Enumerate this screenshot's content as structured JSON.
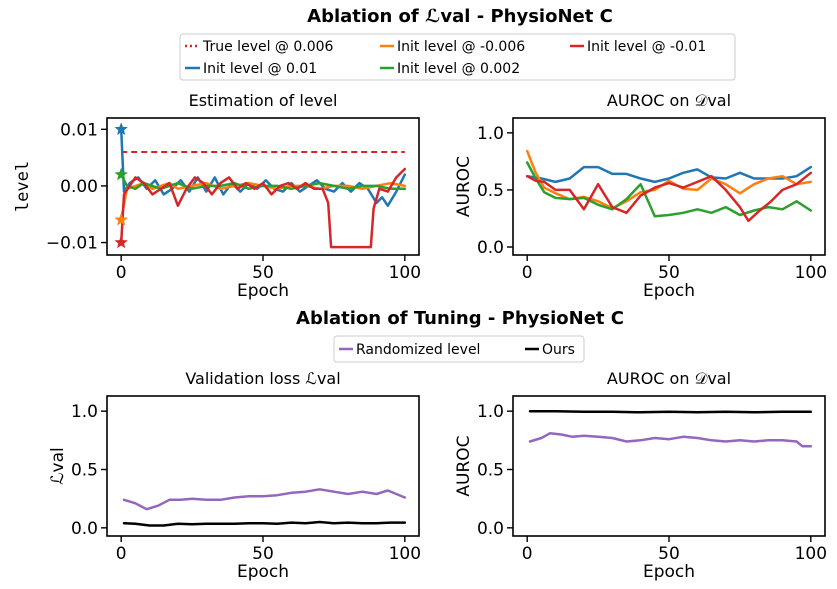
{
  "top_title": "Ablation of ℒval - PhysioNet C",
  "bottom_title": "Ablation of Tuning - PhysioNet C",
  "colors": {
    "blue": "#1f77b4",
    "orange": "#ff7f0e",
    "green": "#2ca02c",
    "red": "#d62728",
    "purple": "#9467bd",
    "black": "#000000"
  },
  "legend_top": [
    {
      "label": "True level @ 0.006",
      "color": "#d62728",
      "style": "dotted"
    },
    {
      "label": "Init level @ -0.006",
      "color": "#ff7f0e",
      "style": "solid"
    },
    {
      "label": "Init level @ -0.01",
      "color": "#d62728",
      "style": "solid"
    },
    {
      "label": "Init level @ 0.01",
      "color": "#1f77b4",
      "style": "solid"
    },
    {
      "label": "Init level @ 0.002",
      "color": "#2ca02c",
      "style": "solid"
    }
  ],
  "legend_bottom": [
    {
      "label": "Randomized level",
      "color": "#9467bd",
      "style": "solid"
    },
    {
      "label": "Ours",
      "color": "#000000",
      "style": "solid"
    }
  ],
  "chart_data": [
    {
      "type": "line",
      "title": "Estimation of level",
      "xlabel": "Epoch",
      "ylabel": "level",
      "xlim": [
        -5,
        105
      ],
      "ylim": [
        -0.0122,
        0.012
      ],
      "xticks": [
        0,
        50,
        100
      ],
      "xtick_labels": [
        "0",
        "50",
        "100"
      ],
      "yticks": [
        -0.01,
        0.0,
        0.01
      ],
      "ytick_labels": [
        "−0.01",
        "0.00",
        "0.01"
      ],
      "hlines": [
        {
          "name": "True level @ 0.006",
          "y": 0.006,
          "x_range": [
            0,
            100
          ],
          "color": "#d62728",
          "style": "dashed"
        }
      ],
      "series": [
        {
          "name": "Init level @ 0.01",
          "color": "#1f77b4",
          "x": [
            0,
            1,
            3,
            6,
            9,
            12,
            15,
            18,
            21,
            24,
            27,
            30,
            33,
            36,
            39,
            42,
            45,
            48,
            51,
            54,
            57,
            60,
            63,
            66,
            69,
            72,
            75,
            78,
            81,
            84,
            87,
            90,
            92,
            94,
            97,
            100
          ],
          "y": [
            0.01,
            -0.001,
            0.0005,
            0.0015,
            -0.0005,
            0.001,
            -0.0015,
            -0.0005,
            0.001,
            -0.001,
            0.0015,
            -0.001,
            0.0015,
            -0.0015,
            0.0005,
            -0.001,
            0.0005,
            -0.0005,
            0.001,
            -0.0005,
            -0.001,
            0.0005,
            -0.001,
            0.0,
            0.001,
            -0.0005,
            -0.001,
            0.0005,
            -0.001,
            0.0005,
            -0.0005,
            -0.003,
            -0.002,
            -0.0035,
            -0.001,
            0.002
          ],
          "marker_start": true
        },
        {
          "name": "Init level @ -0.006",
          "color": "#ff7f0e",
          "x": [
            0,
            2,
            5,
            8,
            11,
            14,
            17,
            20,
            25,
            30,
            35,
            40,
            45,
            50,
            55,
            60,
            65,
            70,
            75,
            80,
            85,
            90,
            95,
            100
          ],
          "y": [
            -0.006,
            -0.0005,
            0.0,
            0.0005,
            -0.0005,
            0.0,
            0.0005,
            -0.0005,
            0.0,
            0.0005,
            -0.0005,
            0.0,
            0.0005,
            0.0,
            -0.0005,
            0.0,
            0.0,
            -0.0005,
            0.0,
            0.0,
            -0.0005,
            0.0,
            0.0005,
            0.0
          ],
          "marker_start": true
        },
        {
          "name": "Init level @ 0.002",
          "color": "#2ca02c",
          "x": [
            0,
            2,
            5,
            8,
            11,
            14,
            17,
            20,
            25,
            30,
            35,
            40,
            45,
            50,
            55,
            60,
            65,
            70,
            75,
            80,
            85,
            90,
            95,
            100
          ],
          "y": [
            0.002,
            0.0,
            -0.0005,
            0.0005,
            0.0,
            -0.0005,
            0.0,
            0.0005,
            -0.0005,
            0.0,
            0.0,
            0.0005,
            -0.0005,
            0.0,
            0.0,
            -0.0005,
            0.0,
            0.0005,
            0.0,
            -0.0005,
            0.0,
            0.0,
            -0.0005,
            -0.0005
          ],
          "marker_start": true
        },
        {
          "name": "Init level @ -0.01",
          "color": "#d62728",
          "x": [
            0,
            1,
            3,
            5,
            8,
            11,
            14,
            17,
            20,
            23,
            26,
            29,
            32,
            35,
            38,
            41,
            44,
            47,
            50,
            53,
            56,
            59,
            62,
            65,
            68,
            71,
            73,
            74,
            76,
            80,
            84,
            86,
            88,
            89,
            91,
            94,
            97,
            100
          ],
          "y": [
            -0.01,
            -0.0015,
            0.0,
            0.0015,
            0.0005,
            -0.0015,
            -0.0005,
            0.0005,
            -0.0035,
            -0.0005,
            0.0015,
            0.0005,
            -0.0015,
            0.0005,
            0.0015,
            -0.0005,
            0.0005,
            -0.0005,
            0.0005,
            -0.0015,
            0.0,
            0.0005,
            -0.0005,
            0.0005,
            -0.0005,
            -0.0005,
            -0.003,
            -0.0108,
            -0.0108,
            -0.0108,
            -0.0108,
            -0.0108,
            -0.0108,
            -0.004,
            -0.0005,
            -0.001,
            0.0015,
            0.003
          ],
          "marker_start": true
        }
      ]
    },
    {
      "type": "line",
      "title": "AUROC on 𝒟val",
      "xlabel": "Epoch",
      "ylabel": "AUROC",
      "xlim": [
        -5,
        105
      ],
      "ylim": [
        -0.07,
        1.13
      ],
      "xticks": [
        0,
        50,
        100
      ],
      "xtick_labels": [
        "0",
        "50",
        "100"
      ],
      "yticks": [
        0.0,
        0.5,
        1.0
      ],
      "ytick_labels": [
        "0.0",
        "0.5",
        "1.0"
      ],
      "series": [
        {
          "name": "Init level @ 0.01",
          "color": "#1f77b4",
          "x": [
            0,
            5,
            10,
            15,
            20,
            25,
            30,
            35,
            40,
            45,
            50,
            55,
            60,
            65,
            70,
            75,
            80,
            85,
            90,
            95,
            100
          ],
          "y": [
            0.62,
            0.6,
            0.57,
            0.6,
            0.7,
            0.7,
            0.64,
            0.64,
            0.6,
            0.57,
            0.6,
            0.65,
            0.68,
            0.61,
            0.6,
            0.65,
            0.6,
            0.6,
            0.6,
            0.62,
            0.7
          ]
        },
        {
          "name": "Init level @ -0.006",
          "color": "#ff7f0e",
          "x": [
            0,
            3,
            6,
            10,
            15,
            20,
            25,
            30,
            35,
            40,
            45,
            50,
            55,
            60,
            65,
            70,
            75,
            80,
            85,
            90,
            95,
            100
          ],
          "y": [
            0.84,
            0.65,
            0.52,
            0.47,
            0.42,
            0.44,
            0.4,
            0.34,
            0.4,
            0.48,
            0.5,
            0.58,
            0.51,
            0.5,
            0.6,
            0.55,
            0.47,
            0.55,
            0.6,
            0.62,
            0.55,
            0.57
          ]
        },
        {
          "name": "Init level @ 0.002",
          "color": "#2ca02c",
          "x": [
            0,
            3,
            6,
            10,
            15,
            20,
            25,
            30,
            35,
            40,
            45,
            50,
            55,
            60,
            65,
            70,
            75,
            80,
            85,
            90,
            95,
            100
          ],
          "y": [
            0.74,
            0.6,
            0.48,
            0.43,
            0.42,
            0.43,
            0.37,
            0.33,
            0.42,
            0.55,
            0.27,
            0.28,
            0.3,
            0.33,
            0.3,
            0.35,
            0.28,
            0.32,
            0.35,
            0.33,
            0.4,
            0.32
          ]
        },
        {
          "name": "Init level @ -0.01",
          "color": "#d62728",
          "x": [
            0,
            3,
            6,
            10,
            15,
            20,
            25,
            30,
            35,
            40,
            45,
            50,
            55,
            60,
            65,
            70,
            75,
            78,
            82,
            86,
            90,
            95,
            100
          ],
          "y": [
            0.62,
            0.58,
            0.57,
            0.5,
            0.5,
            0.33,
            0.55,
            0.35,
            0.3,
            0.45,
            0.52,
            0.56,
            0.52,
            0.57,
            0.62,
            0.5,
            0.35,
            0.23,
            0.32,
            0.4,
            0.5,
            0.55,
            0.65
          ]
        }
      ]
    },
    {
      "type": "line",
      "title": "Validation loss ℒval",
      "xlabel": "Epoch",
      "ylabel": "ℒval",
      "xlim": [
        -5,
        105
      ],
      "ylim": [
        -0.07,
        1.13
      ],
      "xticks": [
        0,
        50,
        100
      ],
      "xtick_labels": [
        "0",
        "50",
        "100"
      ],
      "yticks": [
        0.0,
        0.5,
        1.0
      ],
      "ytick_labels": [
        "0.0",
        "0.5",
        "1.0"
      ],
      "series": [
        {
          "name": "Randomized level",
          "color": "#9467bd",
          "x": [
            1,
            5,
            9,
            13,
            17,
            21,
            25,
            30,
            35,
            40,
            45,
            50,
            55,
            60,
            65,
            70,
            75,
            80,
            85,
            90,
            94,
            100
          ],
          "y": [
            0.24,
            0.21,
            0.16,
            0.19,
            0.24,
            0.24,
            0.25,
            0.24,
            0.24,
            0.26,
            0.27,
            0.27,
            0.28,
            0.3,
            0.31,
            0.33,
            0.31,
            0.29,
            0.31,
            0.29,
            0.32,
            0.26
          ]
        },
        {
          "name": "Ours",
          "color": "#000000",
          "x": [
            1,
            5,
            10,
            15,
            20,
            25,
            30,
            35,
            40,
            45,
            50,
            55,
            60,
            65,
            70,
            75,
            80,
            85,
            90,
            95,
            100
          ],
          "y": [
            0.04,
            0.035,
            0.02,
            0.02,
            0.035,
            0.03,
            0.035,
            0.035,
            0.035,
            0.04,
            0.04,
            0.035,
            0.045,
            0.04,
            0.05,
            0.04,
            0.045,
            0.04,
            0.04,
            0.045,
            0.045
          ]
        }
      ]
    },
    {
      "type": "line",
      "title": "AUROC on 𝒟val",
      "xlabel": "Epoch",
      "ylabel": "AUROC",
      "xlim": [
        -5,
        105
      ],
      "ylim": [
        -0.07,
        1.13
      ],
      "xticks": [
        0,
        50,
        100
      ],
      "xtick_labels": [
        "0",
        "50",
        "100"
      ],
      "yticks": [
        0.0,
        0.5,
        1.0
      ],
      "ytick_labels": [
        "0.0",
        "0.5",
        "1.0"
      ],
      "series": [
        {
          "name": "Randomized level",
          "color": "#9467bd",
          "x": [
            1,
            5,
            8,
            12,
            16,
            20,
            25,
            30,
            35,
            40,
            45,
            50,
            55,
            60,
            65,
            70,
            75,
            80,
            85,
            90,
            95,
            97,
            100
          ],
          "y": [
            0.74,
            0.77,
            0.81,
            0.8,
            0.78,
            0.79,
            0.78,
            0.77,
            0.74,
            0.75,
            0.77,
            0.76,
            0.78,
            0.77,
            0.75,
            0.74,
            0.75,
            0.74,
            0.75,
            0.75,
            0.74,
            0.7,
            0.7
          ]
        },
        {
          "name": "Ours",
          "color": "#000000",
          "x": [
            1,
            10,
            20,
            30,
            40,
            50,
            60,
            70,
            80,
            90,
            100
          ],
          "y": [
            1.0,
            1.0,
            0.995,
            0.995,
            0.99,
            0.995,
            0.99,
            0.995,
            0.99,
            0.995,
            0.995
          ]
        }
      ]
    }
  ]
}
